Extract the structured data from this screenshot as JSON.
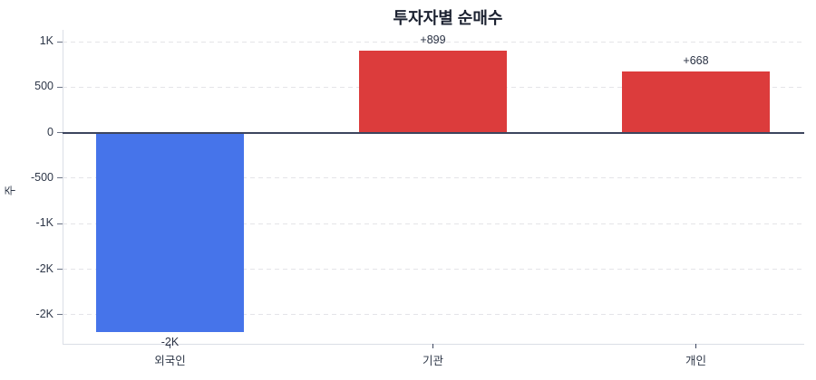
{
  "colors": {
    "title_text": "#1B2130",
    "label_text": "#293143",
    "tick_text": "#2E3748",
    "tickmark": "#6B7385",
    "grid": "#E4E4E8",
    "axis": "#DBDEE6",
    "zero_line": "#3C455E",
    "positive_bar": "#DC3C3C",
    "negative_bar": "#4674EA"
  },
  "chart_data": {
    "type": "bar",
    "title": "투자자별 순매수",
    "xlabel": "",
    "ylabel": "주",
    "categories": [
      "외국인",
      "기관",
      "개인"
    ],
    "values": [
      -2191,
      899,
      668
    ],
    "bar_labels": [
      "-2K",
      "+899",
      "+668"
    ],
    "bar_colors": [
      "#4674EA",
      "#DC3C3C",
      "#DC3C3C"
    ],
    "yticks": [
      1000,
      500,
      0,
      -500,
      -1000,
      -1500,
      -2000
    ],
    "ytick_labels": [
      "1K",
      "500",
      "0",
      "-500",
      "-1K",
      "-2K",
      "-2K"
    ],
    "ylim": [
      -2320,
      1130
    ],
    "grid": "horizontal-dashed",
    "legend": "none"
  }
}
